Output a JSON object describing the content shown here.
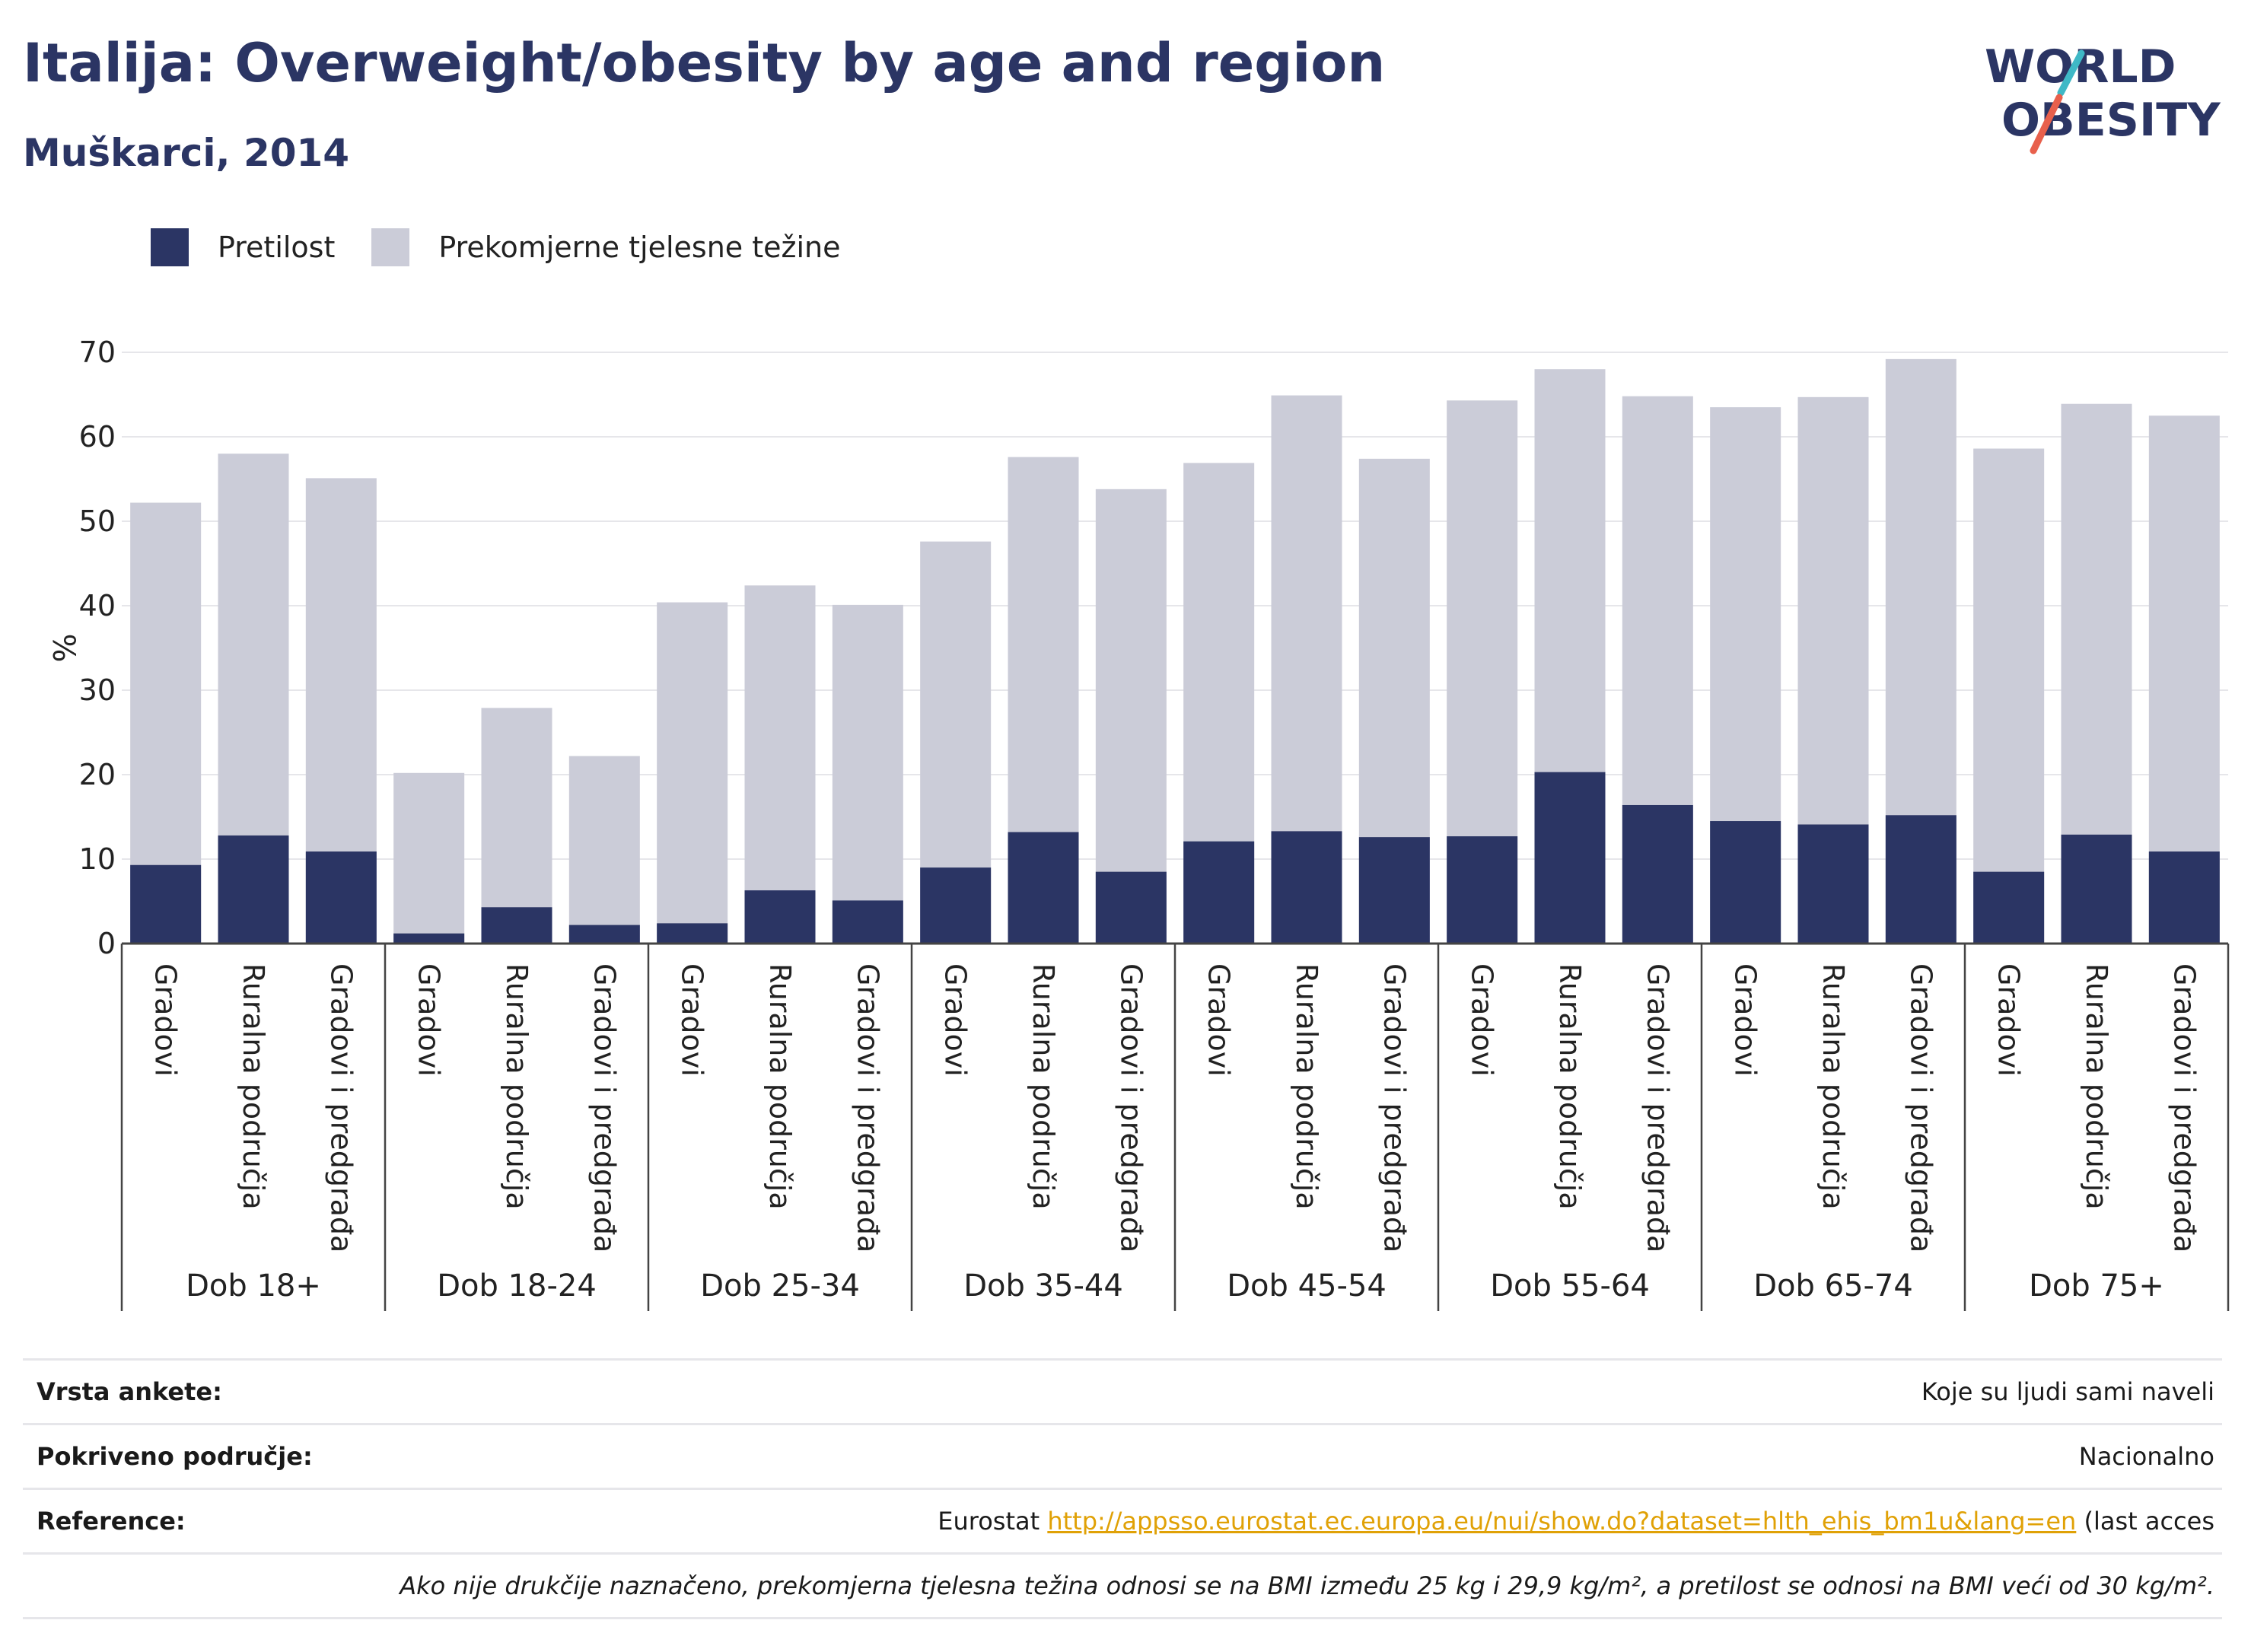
{
  "header": {
    "title": "Italija: Overweight/obesity by age and region",
    "subtitle": "Muškarci, 2014"
  },
  "logo": {
    "line1": "WORLD",
    "line2": "OBESITY",
    "colors": {
      "text": "#2b3564",
      "slash_red": "#e8604c",
      "slash_teal": "#3fb8c6"
    }
  },
  "legend": {
    "items": [
      {
        "label": "Pretilost",
        "color": "#2b3564"
      },
      {
        "label": "Prekomjerne tjelesne težine",
        "color": "#cbccd8"
      }
    ]
  },
  "chart_data": {
    "type": "bar",
    "stacked": false,
    "ylabel": "%",
    "ylim": [
      0,
      70
    ],
    "yticks": [
      0,
      10,
      20,
      30,
      40,
      50,
      60,
      70
    ],
    "grid": true,
    "legend_position": "top-left",
    "series": [
      {
        "name": "Pretilost",
        "color": "#2b3564"
      },
      {
        "name": "Prekomjerne tjelesne težine",
        "color": "#cbccd8"
      }
    ],
    "groups": [
      {
        "label": "Dob 18+",
        "bars": [
          {
            "label": "Gradovi",
            "obesity": 9.3,
            "overweight": 52.2
          },
          {
            "label": "Ruralna područja",
            "obesity": 12.8,
            "overweight": 58.0
          },
          {
            "label": "Gradovi i predgrađa",
            "obesity": 10.9,
            "overweight": 55.1
          }
        ]
      },
      {
        "label": "Dob 18-24",
        "bars": [
          {
            "label": "Gradovi",
            "obesity": 1.2,
            "overweight": 20.2
          },
          {
            "label": "Ruralna područja",
            "obesity": 4.3,
            "overweight": 27.9
          },
          {
            "label": "Gradovi i predgrađa",
            "obesity": 2.2,
            "overweight": 22.2
          }
        ]
      },
      {
        "label": "Dob 25-34",
        "bars": [
          {
            "label": "Gradovi",
            "obesity": 2.4,
            "overweight": 40.4
          },
          {
            "label": "Ruralna područja",
            "obesity": 6.3,
            "overweight": 42.4
          },
          {
            "label": "Gradovi i predgrađa",
            "obesity": 5.1,
            "overweight": 40.1
          }
        ]
      },
      {
        "label": "Dob 35-44",
        "bars": [
          {
            "label": "Gradovi",
            "obesity": 9.0,
            "overweight": 47.6
          },
          {
            "label": "Ruralna područja",
            "obesity": 13.2,
            "overweight": 57.6
          },
          {
            "label": "Gradovi i predgrađa",
            "obesity": 8.5,
            "overweight": 53.8
          }
        ]
      },
      {
        "label": "Dob 45-54",
        "bars": [
          {
            "label": "Gradovi",
            "obesity": 12.1,
            "overweight": 56.9
          },
          {
            "label": "Ruralna područja",
            "obesity": 13.3,
            "overweight": 64.9
          },
          {
            "label": "Gradovi i predgrađa",
            "obesity": 12.6,
            "overweight": 57.4
          }
        ]
      },
      {
        "label": "Dob 55-64",
        "bars": [
          {
            "label": "Gradovi",
            "obesity": 12.7,
            "overweight": 64.3
          },
          {
            "label": "Ruralna područja",
            "obesity": 20.3,
            "overweight": 68.0
          },
          {
            "label": "Gradovi i predgrađa",
            "obesity": 16.4,
            "overweight": 64.8
          }
        ]
      },
      {
        "label": "Dob 65-74",
        "bars": [
          {
            "label": "Gradovi",
            "obesity": 14.5,
            "overweight": 63.5
          },
          {
            "label": "Ruralna područja",
            "obesity": 14.1,
            "overweight": 64.7
          },
          {
            "label": "Gradovi i predgrađa",
            "obesity": 15.2,
            "overweight": 69.2
          }
        ]
      },
      {
        "label": "Dob 75+",
        "bars": [
          {
            "label": "Gradovi",
            "obesity": 8.5,
            "overweight": 58.6
          },
          {
            "label": "Ruralna područja",
            "obesity": 12.9,
            "overweight": 63.9
          },
          {
            "label": "Gradovi i predgrađa",
            "obesity": 10.9,
            "overweight": 62.5
          }
        ]
      }
    ]
  },
  "info": {
    "survey_type_label": "Vrsta ankete:",
    "survey_type_value": "Koje su ljudi sami naveli",
    "coverage_label": "Pokriveno područje:",
    "coverage_value": "Nacionalno",
    "reference_label": "Reference:",
    "reference_prefix": "Eurostat ",
    "reference_link": "http://appsso.eurostat.ec.europa.eu/nui/show.do?dataset=hlth_ehis_bm1u&lang=en",
    "reference_suffix": " (last acces",
    "note": "Ako nije drukčije naznačeno, prekomjerna tjelesna težina odnosi se na BMI između 25 kg i 29,9 kg/m², a pretilost se odnosi na BMI veći od 30 kg/m²."
  }
}
